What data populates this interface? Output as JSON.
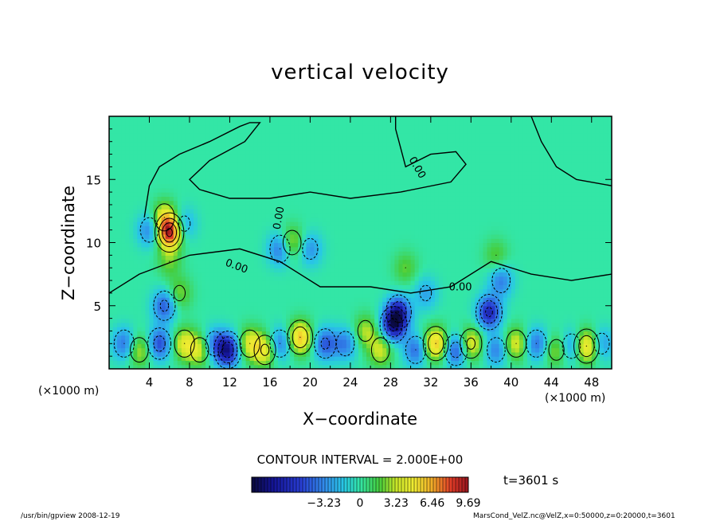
{
  "chart_data": {
    "type": "heatmap",
    "title": "vertical velocity",
    "xlabel": "X−coordinate",
    "ylabel": "Z−coordinate",
    "x_unit_left": "(×1000 m)",
    "x_unit_right": "(×1000 m)",
    "xlim": [
      0,
      50
    ],
    "ylim": [
      0,
      20
    ],
    "x_ticks": [
      4,
      8,
      12,
      16,
      20,
      24,
      28,
      32,
      36,
      40,
      44,
      48
    ],
    "y_ticks": [
      5,
      10,
      15
    ],
    "contour_labels": [
      "0.00",
      "0.00",
      "0.00",
      "0.00"
    ],
    "contour_interval_text": "CONTOUR INTERVAL = 2.000E+00",
    "time_text": "t=3601 s",
    "colorbar": {
      "vmin": -9.69,
      "vmax": 9.69,
      "tick_values": [
        -3.23,
        0,
        3.23,
        6.46,
        9.69
      ],
      "tick_labels": [
        "−3.23",
        "0",
        "3.23",
        "6.46",
        "9.69"
      ]
    },
    "colors": {
      "background_field": "#33e6a6",
      "strong_down": "#1a1ab0",
      "down": "#33a8e6",
      "up": "#e6e633",
      "strong_up": "#e62020"
    },
    "features": [
      {
        "x": 6.0,
        "z": 10.8,
        "w": 8.5
      },
      {
        "x": 5.5,
        "z": 12.0,
        "w": 4.0
      },
      {
        "x": 4.0,
        "z": 11.0,
        "w": -3.5
      },
      {
        "x": 7.5,
        "z": 11.5,
        "w": -2.5
      },
      {
        "x": 6.0,
        "z": 8.5,
        "w": 2.0
      },
      {
        "x": 5.5,
        "z": 5.0,
        "w": -4.5
      },
      {
        "x": 7.0,
        "z": 6.0,
        "w": 2.5
      },
      {
        "x": 18.2,
        "z": 10.0,
        "w": 3.5
      },
      {
        "x": 17.0,
        "z": 9.5,
        "w": -4.0
      },
      {
        "x": 20.0,
        "z": 9.5,
        "w": -3.0
      },
      {
        "x": 28.8,
        "z": 4.5,
        "w": -6.0
      },
      {
        "x": 28.3,
        "z": 3.5,
        "w": -7.0
      },
      {
        "x": 29.5,
        "z": 8.0,
        "w": 2.0
      },
      {
        "x": 31.5,
        "z": 6.0,
        "w": -2.5
      },
      {
        "x": 37.8,
        "z": 4.5,
        "w": -6.5
      },
      {
        "x": 39.0,
        "z": 7.0,
        "w": -3.5
      },
      {
        "x": 38.5,
        "z": 9.0,
        "w": 2.0
      },
      {
        "x": 1.5,
        "z": 2.0,
        "w": -4.0
      },
      {
        "x": 3.0,
        "z": 1.5,
        "w": 3.5
      },
      {
        "x": 5.0,
        "z": 2.0,
        "w": -5.0
      },
      {
        "x": 7.5,
        "z": 2.0,
        "w": 4.0
      },
      {
        "x": 9.0,
        "z": 1.5,
        "w": 3.5
      },
      {
        "x": 10.5,
        "z": 2.0,
        "w": -3.5
      },
      {
        "x": 11.8,
        "z": 1.5,
        "w": -7.5
      },
      {
        "x": 14.0,
        "z": 2.0,
        "w": 4.0
      },
      {
        "x": 15.5,
        "z": 1.5,
        "w": 4.5
      },
      {
        "x": 17.0,
        "z": 2.0,
        "w": -4.0
      },
      {
        "x": 19.0,
        "z": 2.5,
        "w": 6.0
      },
      {
        "x": 21.5,
        "z": 2.0,
        "w": -4.5
      },
      {
        "x": 23.5,
        "z": 2.0,
        "w": -3.5
      },
      {
        "x": 25.5,
        "z": 3.0,
        "w": 3.0
      },
      {
        "x": 27.0,
        "z": 1.5,
        "w": 3.5
      },
      {
        "x": 30.5,
        "z": 1.5,
        "w": -4.0
      },
      {
        "x": 32.5,
        "z": 2.0,
        "w": 6.0
      },
      {
        "x": 34.5,
        "z": 1.5,
        "w": -5.0
      },
      {
        "x": 36.0,
        "z": 2.0,
        "w": 4.5
      },
      {
        "x": 38.5,
        "z": 1.5,
        "w": -3.5
      },
      {
        "x": 40.5,
        "z": 2.0,
        "w": 4.0
      },
      {
        "x": 42.5,
        "z": 2.0,
        "w": -4.0
      },
      {
        "x": 44.5,
        "z": 1.5,
        "w": 3.0
      },
      {
        "x": 46.0,
        "z": 1.8,
        "w": -3.5
      },
      {
        "x": 47.5,
        "z": 1.8,
        "w": 6.0
      },
      {
        "x": 49.0,
        "z": 2.0,
        "w": -3.0
      }
    ],
    "zero_contour": [
      [
        3.5,
        12.0
      ],
      [
        4.0,
        14.5
      ],
      [
        5.0,
        16.0
      ],
      [
        7.0,
        17.0
      ],
      [
        10.0,
        18.0
      ],
      [
        13.0,
        19.2
      ],
      [
        14.0,
        19.5
      ],
      [
        15.0,
        19.5
      ],
      [
        13.5,
        18.0
      ],
      [
        10.0,
        16.5
      ],
      [
        8.0,
        15.0
      ],
      [
        9.0,
        14.2
      ],
      [
        12.0,
        13.5
      ],
      [
        16.0,
        13.5
      ],
      [
        20.0,
        14.0
      ],
      [
        24.0,
        13.5
      ],
      [
        29.0,
        14.0
      ],
      [
        34.0,
        14.8
      ],
      [
        35.5,
        16.2
      ],
      [
        34.5,
        17.2
      ],
      [
        32.0,
        17.0
      ],
      [
        29.5,
        16.0
      ],
      [
        29.0,
        17.5
      ],
      [
        28.5,
        19.0
      ],
      [
        28.5,
        20.0
      ]
    ],
    "zero_contour_upper": [
      [
        42.0,
        20.0
      ],
      [
        43.0,
        18.0
      ],
      [
        44.5,
        16.0
      ],
      [
        46.5,
        15.0
      ],
      [
        50.0,
        14.5
      ]
    ]
  },
  "footer": {
    "left_text": "/usr/bin/gpview   2008-12-19",
    "right_text": "MarsCond_VelZ.nc@VelZ,x=0:50000,z=0:20000,t=3601"
  }
}
